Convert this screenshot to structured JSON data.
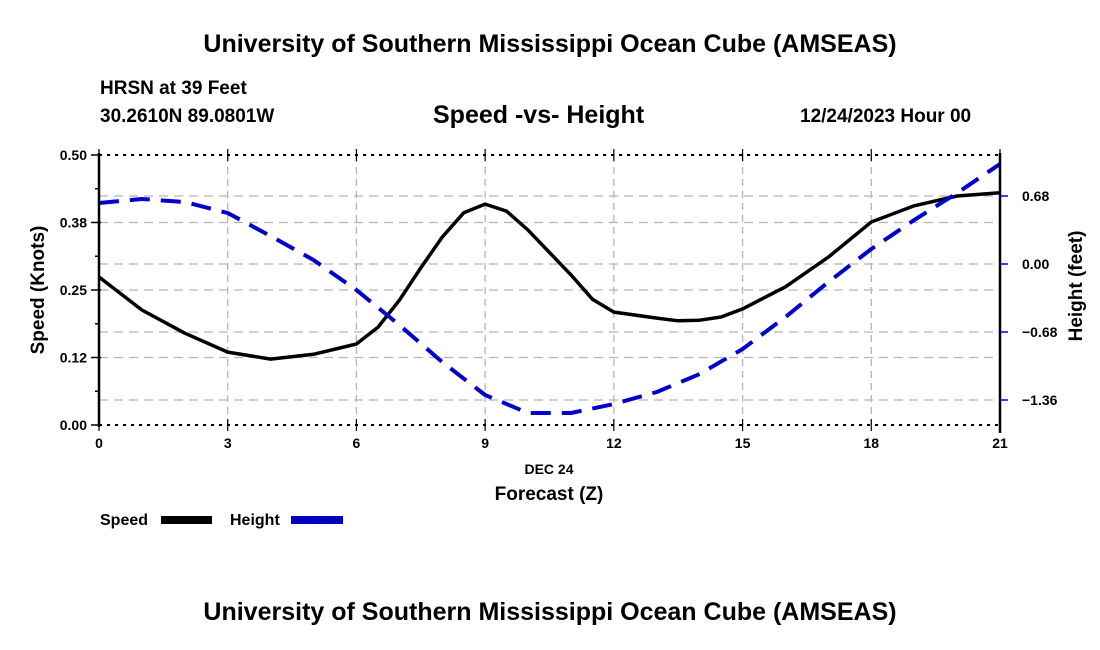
{
  "header": {
    "main_title": "University of Southern Mississippi Ocean Cube (AMSEAS)",
    "station": "HRSN at 39 Feet",
    "coords": "30.2610N  89.0801W",
    "chart_title": "Speed -vs- Height",
    "datetime": "12/24/2023 Hour 00"
  },
  "footer": {
    "title": "University of Southern Mississippi Ocean Cube (AMSEAS)"
  },
  "colors": {
    "speed": "#000000",
    "height": "#0000cc",
    "grid": "#b4b4b4"
  },
  "chart_data": {
    "type": "line",
    "title": "Speed -vs- Height",
    "xlabel": "Forecast (Z)",
    "xsublabel": "DEC 24",
    "ylabel": "Speed (Knots)",
    "y2label": "Height (feet)",
    "xlim": [
      0,
      21
    ],
    "ylim": [
      0,
      0.5
    ],
    "y2lim": [
      -1.61,
      1.09
    ],
    "xticks": [
      0,
      3,
      6,
      9,
      12,
      15,
      18,
      21
    ],
    "xtick_labels": [
      "0",
      "3",
      "6",
      "9",
      "12",
      "15",
      "18",
      "21"
    ],
    "yticks": [
      0.0,
      0.125,
      0.25,
      0.375,
      0.5
    ],
    "ytick_labels": [
      "0.00",
      "0.12",
      "0.25",
      "0.38",
      "0.50"
    ],
    "y2ticks": [
      0.68,
      0.0,
      -0.68,
      -1.36
    ],
    "y2tick_labels": [
      "0.68",
      "0.00",
      "−0.68",
      "−1.36"
    ],
    "grid": true,
    "legend": "bottom-left",
    "series": [
      {
        "name": "Speed",
        "axis": "left",
        "style": "solid",
        "x": [
          0,
          1,
          2,
          3,
          4,
          5,
          6,
          6.5,
          7,
          7.5,
          8,
          8.5,
          9,
          9.5,
          10,
          11,
          11.5,
          12,
          13,
          13.5,
          14,
          14.5,
          15,
          16,
          17,
          18,
          19,
          20,
          21
        ],
        "values": [
          0.274,
          0.213,
          0.17,
          0.135,
          0.122,
          0.131,
          0.15,
          0.181,
          0.231,
          0.291,
          0.348,
          0.393,
          0.409,
          0.396,
          0.361,
          0.278,
          0.233,
          0.209,
          0.198,
          0.193,
          0.194,
          0.2,
          0.215,
          0.256,
          0.311,
          0.376,
          0.406,
          0.424,
          0.43
        ]
      },
      {
        "name": "Height",
        "axis": "right",
        "style": "dashed",
        "x": [
          0,
          1,
          2,
          3,
          4,
          5,
          6,
          7,
          8,
          9,
          10,
          11,
          12,
          13,
          14,
          15,
          16,
          17,
          18,
          19,
          20,
          21
        ],
        "values": [
          0.61,
          0.65,
          0.62,
          0.51,
          0.28,
          0.04,
          -0.26,
          -0.61,
          -0.98,
          -1.31,
          -1.49,
          -1.49,
          -1.4,
          -1.28,
          -1.1,
          -0.85,
          -0.53,
          -0.18,
          0.15,
          0.44,
          0.71,
          1.0
        ]
      }
    ]
  }
}
